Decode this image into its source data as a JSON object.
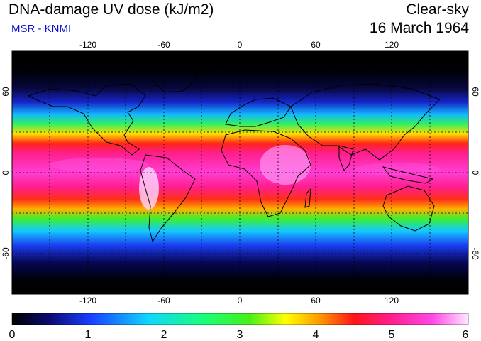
{
  "header": {
    "title": "DNA-damage UV dose (kJ/m2)",
    "source": "MSR - KNMI",
    "condition": "Clear-sky",
    "date": "16 March 1964"
  },
  "colors": {
    "source_text": "#1010d0",
    "scale": [
      "#000000",
      "#0a0a6e",
      "#1a3cff",
      "#10c8ff",
      "#18ff7a",
      "#46f018",
      "#ffff00",
      "#ffa000",
      "#ff1418",
      "#ff1e8c",
      "#ff46e6",
      "#ffe6ff"
    ]
  },
  "map": {
    "lon_ticks": [
      "-120",
      "-60",
      "0",
      "60",
      "120"
    ],
    "lat_ticks": [
      "60",
      "0",
      "-60"
    ],
    "grid": true
  },
  "colorbar": {
    "min": 0,
    "max": 6,
    "tick_labels": [
      "0",
      "1",
      "2",
      "3",
      "4",
      "5",
      "6"
    ]
  }
}
